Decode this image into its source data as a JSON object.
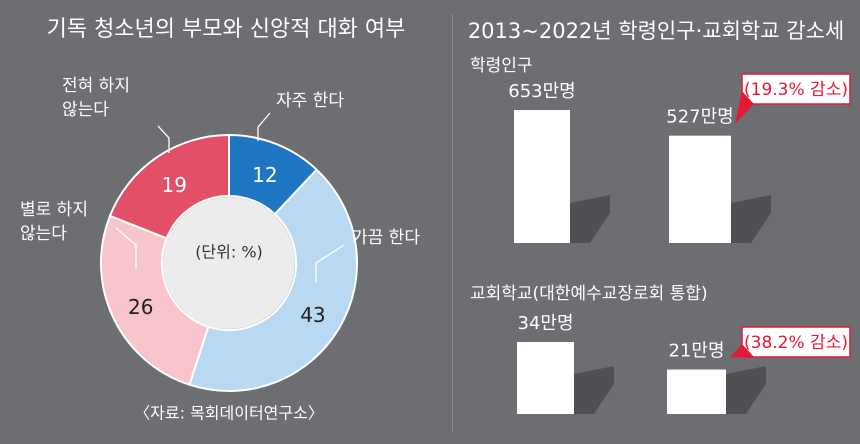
{
  "colors": {
    "background": "#6d6e71",
    "often": "#1f76c2",
    "sometimes": "#b9d8f2",
    "rarely": "#f7c5cb",
    "never": "#e24f66",
    "center": "#ececec",
    "callout": "#e51937",
    "shadow": "#4a4b4e"
  },
  "chart_data": [
    {
      "type": "pie",
      "title": "기독 청소년의 부모와 신앙적 대화 여부",
      "center_label": "(단위: %)",
      "slices": [
        {
          "label": "자주 한다",
          "value": 12,
          "color": "#1f76c2"
        },
        {
          "label": "가끔 한다",
          "value": 43,
          "color": "#b9d8f2"
        },
        {
          "label": "별로 하지 않는다",
          "value": 26,
          "color": "#f7c5cb"
        },
        {
          "label": "전혀 하지 않는다",
          "value": 19,
          "color": "#e24f66"
        }
      ],
      "source": "〈자료: 목회데이터연구소〉"
    },
    {
      "type": "bar",
      "title": "2013~2022년 학령인구·교회학교 감소세",
      "panels": [
        {
          "label": "학령인구",
          "values": [
            653,
            527
          ],
          "value_labels": [
            "653만명",
            "527만명"
          ],
          "callout": "(19.3% 감소)"
        },
        {
          "label": "교회학교(대한예수교장로회 통합)",
          "values": [
            34,
            21
          ],
          "value_labels": [
            "34만명",
            "21만명"
          ],
          "callout": "(38.2% 감소)"
        }
      ]
    }
  ]
}
